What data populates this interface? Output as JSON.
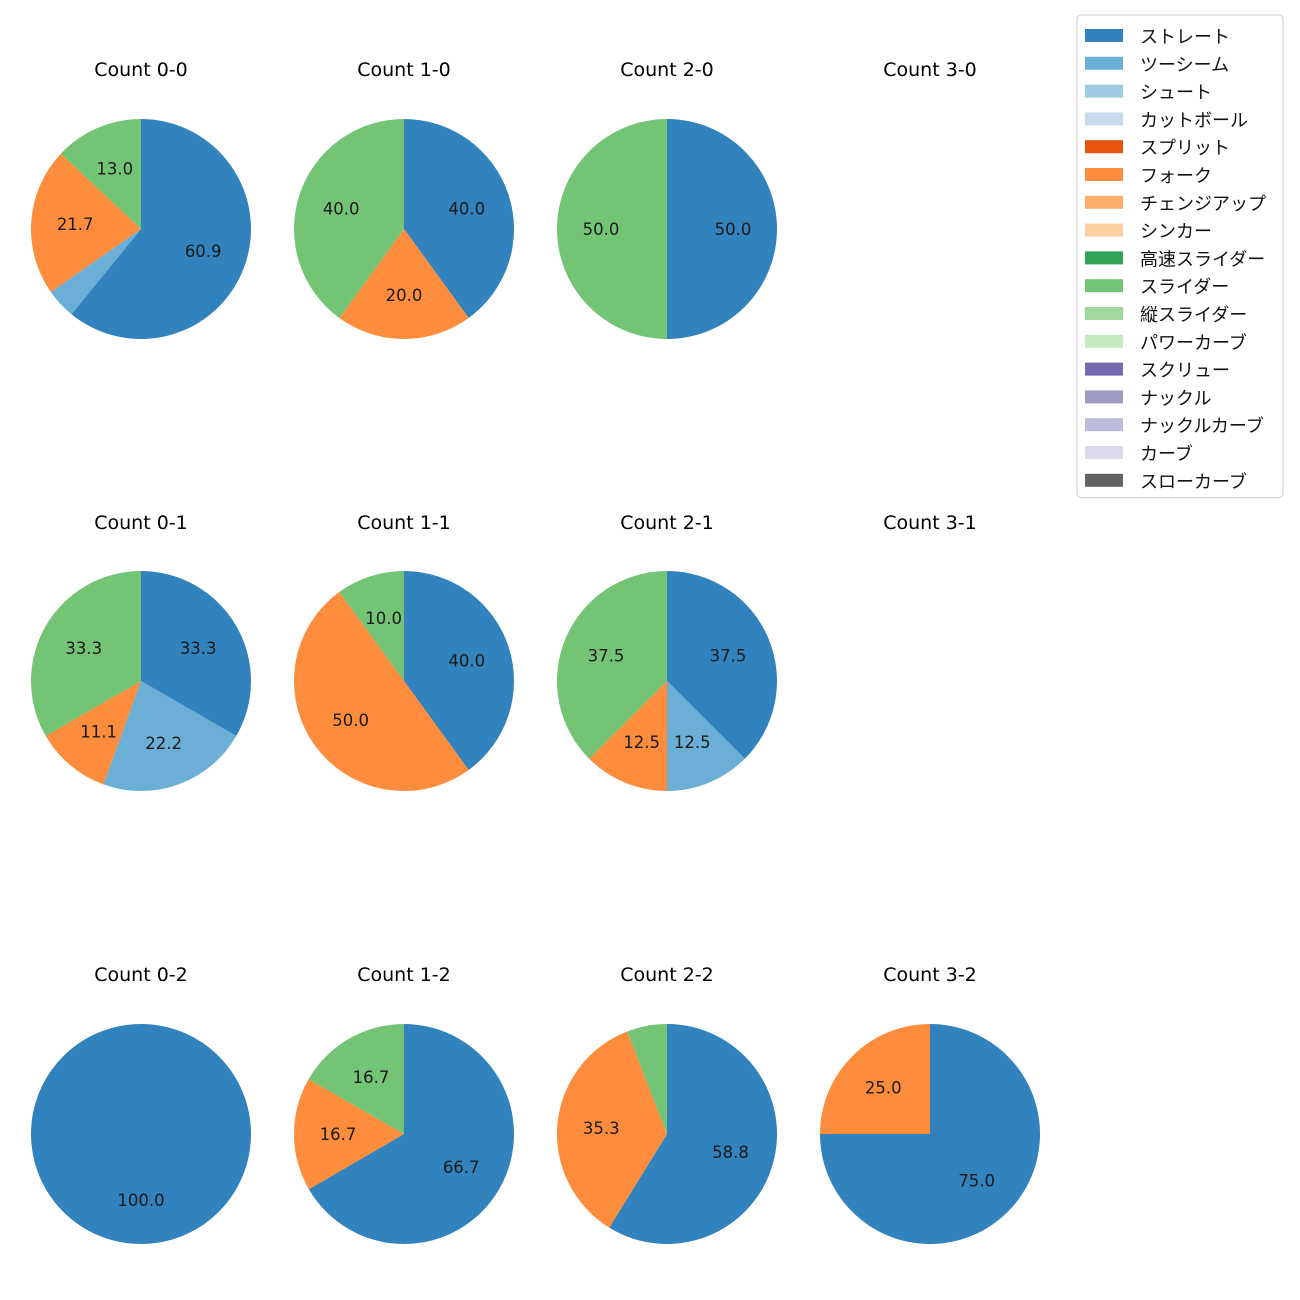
{
  "chart_data": {
    "type": "pie",
    "legend": {
      "position": "top-right",
      "entries": [
        {
          "name": "ストレート",
          "color": "#3182bd"
        },
        {
          "name": "ツーシーム",
          "color": "#6baed6"
        },
        {
          "name": "シュート",
          "color": "#9ecae1"
        },
        {
          "name": "カットボール",
          "color": "#c6dbef"
        },
        {
          "name": "スプリット",
          "color": "#e6550d"
        },
        {
          "name": "フォーク",
          "color": "#fd8d3c"
        },
        {
          "name": "チェンジアップ",
          "color": "#fdae6b"
        },
        {
          "name": "シンカー",
          "color": "#fdd0a2"
        },
        {
          "name": "高速スライダー",
          "color": "#31a354"
        },
        {
          "name": "スライダー",
          "color": "#74c476"
        },
        {
          "name": "縦スライダー",
          "color": "#a1d99b"
        },
        {
          "name": "パワーカーブ",
          "color": "#c7e9c0"
        },
        {
          "name": "スクリュー",
          "color": "#756bb1"
        },
        {
          "name": "ナックル",
          "color": "#9e9ac8"
        },
        {
          "name": "ナックルカーブ",
          "color": "#bcbddc"
        },
        {
          "name": "カーブ",
          "color": "#dadaeb"
        },
        {
          "name": "スローカーブ",
          "color": "#636363"
        }
      ]
    },
    "charts": [
      {
        "title": "Count 0-0",
        "slices": [
          {
            "pitch": "ストレート",
            "value": 60.9,
            "label": "60.9"
          },
          {
            "pitch": "ツーシーム",
            "value": 4.4,
            "label": ""
          },
          {
            "pitch": "フォーク",
            "value": 21.7,
            "label": "21.7"
          },
          {
            "pitch": "スライダー",
            "value": 13.0,
            "label": "13.0"
          }
        ]
      },
      {
        "title": "Count 1-0",
        "slices": [
          {
            "pitch": "ストレート",
            "value": 40.0,
            "label": "40.0"
          },
          {
            "pitch": "フォーク",
            "value": 20.0,
            "label": "20.0"
          },
          {
            "pitch": "スライダー",
            "value": 40.0,
            "label": "40.0"
          }
        ]
      },
      {
        "title": "Count 2-0",
        "slices": [
          {
            "pitch": "ストレート",
            "value": 50.0,
            "label": "50.0"
          },
          {
            "pitch": "スライダー",
            "value": 50.0,
            "label": "50.0"
          }
        ]
      },
      {
        "title": "Count 3-0",
        "slices": []
      },
      {
        "title": "Count 0-1",
        "slices": [
          {
            "pitch": "ストレート",
            "value": 33.3,
            "label": "33.3"
          },
          {
            "pitch": "ツーシーム",
            "value": 22.2,
            "label": "22.2"
          },
          {
            "pitch": "フォーク",
            "value": 11.1,
            "label": "11.1"
          },
          {
            "pitch": "スライダー",
            "value": 33.3,
            "label": "33.3"
          }
        ]
      },
      {
        "title": "Count 1-1",
        "slices": [
          {
            "pitch": "ストレート",
            "value": 40.0,
            "label": "40.0"
          },
          {
            "pitch": "フォーク",
            "value": 50.0,
            "label": "50.0"
          },
          {
            "pitch": "スライダー",
            "value": 10.0,
            "label": "10.0"
          }
        ]
      },
      {
        "title": "Count 2-1",
        "slices": [
          {
            "pitch": "ストレート",
            "value": 37.5,
            "label": "37.5"
          },
          {
            "pitch": "ツーシーム",
            "value": 12.5,
            "label": "12.5"
          },
          {
            "pitch": "フォーク",
            "value": 12.5,
            "label": "12.5"
          },
          {
            "pitch": "スライダー",
            "value": 37.5,
            "label": "37.5"
          }
        ]
      },
      {
        "title": "Count 3-1",
        "slices": []
      },
      {
        "title": "Count 0-2",
        "slices": [
          {
            "pitch": "ストレート",
            "value": 100.0,
            "label": "100.0"
          }
        ]
      },
      {
        "title": "Count 1-2",
        "slices": [
          {
            "pitch": "ストレート",
            "value": 66.7,
            "label": "66.7"
          },
          {
            "pitch": "フォーク",
            "value": 16.7,
            "label": "16.7"
          },
          {
            "pitch": "スライダー",
            "value": 16.7,
            "label": "16.7"
          }
        ]
      },
      {
        "title": "Count 2-2",
        "slices": [
          {
            "pitch": "ストレート",
            "value": 58.8,
            "label": "58.8"
          },
          {
            "pitch": "フォーク",
            "value": 35.3,
            "label": "35.3"
          },
          {
            "pitch": "スライダー",
            "value": 5.9,
            "label": ""
          }
        ]
      },
      {
        "title": "Count 3-2",
        "slices": [
          {
            "pitch": "ストレート",
            "value": 75.0,
            "label": "75.0"
          },
          {
            "pitch": "フォーク",
            "value": 25.0,
            "label": "25.0"
          }
        ]
      }
    ]
  }
}
